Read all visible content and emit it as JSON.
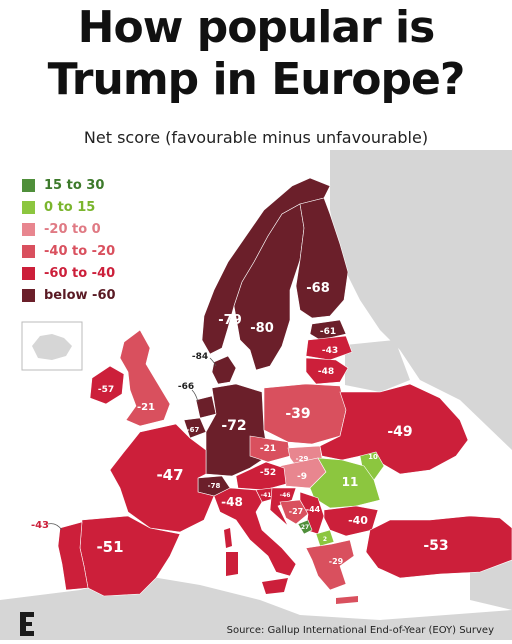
{
  "title_line1": "How popular is",
  "title_line2": "Trump in Europe?",
  "subtitle": "Net score (favourable minus unfavourable)",
  "source": "Source: Gallup International End-of-Year (EOY) Survey",
  "colors": {
    "15_to_30": "#4f8f3a",
    "0_to_15": "#8cc63f",
    "minus20_to_0": "#e8868f",
    "minus40_to_minus20": "#d9505e",
    "minus60_to_minus40": "#cc1f3a",
    "below_minus60": "#6b1f2a",
    "land_other": "#d6d6d6",
    "sea": "#ffffff"
  },
  "legend": [
    {
      "label": "15 to 30",
      "color": "#4f8f3a",
      "text_color": "#3d7a2b"
    },
    {
      "label": "0 to 15",
      "color": "#8cc63f",
      "text_color": "#7ab52d"
    },
    {
      "label": "-20 to 0",
      "color": "#e8868f",
      "text_color": "#e07a84"
    },
    {
      "label": "-40 to -20",
      "color": "#d9505e",
      "text_color": "#d9505e"
    },
    {
      "label": "-60 to -40",
      "color": "#cc1f3a",
      "text_color": "#cc1f3a"
    },
    {
      "label": "below -60",
      "color": "#6b1f2a",
      "text_color": "#5a1a24"
    }
  ],
  "country_scores": {
    "finland": "-68",
    "norway": "-79",
    "sweden": "-80",
    "estonia": "-61",
    "latvia": "-43",
    "lithuania": "-48",
    "denmark": "-84",
    "netherlands": "-66",
    "ireland": "-57",
    "uk": "-21",
    "belgium": "-67",
    "germany": "-72",
    "poland": "-39",
    "ukraine": "-49",
    "moldova": "10",
    "czechia": "-21",
    "slovakia": "-29",
    "hungary": "-9",
    "romania": "11",
    "austria": "-52",
    "switzerland": "-78",
    "slovenia": "-41",
    "croatia": "-46",
    "bosnia": "-27",
    "serbia": "-44",
    "bulgaria": "-40",
    "montenegro": "27",
    "north_macedonia": "2",
    "france": "-47",
    "italy": "-48",
    "spain": "-51",
    "portugal": "-43",
    "greece": "-29",
    "turkey": "-53"
  }
}
